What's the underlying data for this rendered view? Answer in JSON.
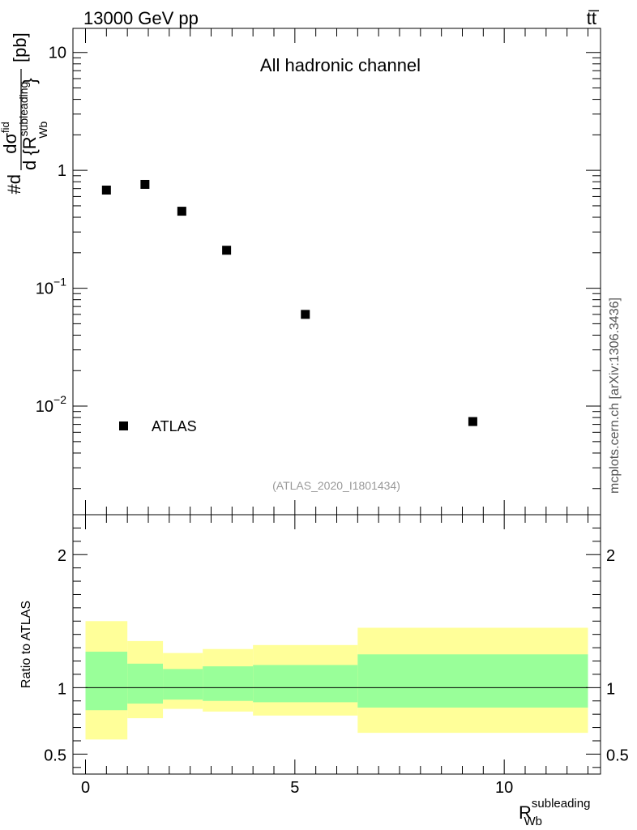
{
  "header": {
    "left": "13000 GeV pp",
    "right": "tt̅"
  },
  "side_label": "mcplots.cern.ch [arXiv:1306.3436]",
  "chart_data": [
    {
      "type": "scatter",
      "panel": "main",
      "title": "All hadronic channel",
      "ylabel": {
        "prefix": "#d",
        "frac_top": "dσ",
        "frac_top_sup": "fid",
        "frac_bottom_d": "d {R",
        "frac_bottom_sup": "subleading",
        "frac_bottom_sub": "Wb",
        "frac_bottom_close": "}",
        "unit": "[pb]"
      },
      "yscale": "log",
      "ylim": [
        0.0012,
        16
      ],
      "xlim": [
        -0.3,
        12.3
      ],
      "ytick_labels": [
        {
          "value": 10,
          "label": "10"
        },
        {
          "value": 1,
          "label": "1"
        },
        {
          "value": 0.1,
          "base": "10",
          "exp": "−1"
        },
        {
          "value": 0.01,
          "base": "10",
          "exp": "−2"
        }
      ],
      "series": [
        {
          "name": "ATLAS",
          "marker": "square",
          "color": "#000000",
          "x": [
            0.5,
            1.42,
            2.3,
            3.37,
            5.25,
            9.25
          ],
          "y": [
            0.68,
            0.76,
            0.45,
            0.21,
            0.06,
            0.0074
          ]
        }
      ],
      "legend": {
        "position": "bottom-left",
        "label": "ATLAS"
      },
      "watermark": "(ATLAS_2020_I1801434)"
    },
    {
      "type": "area",
      "panel": "ratio",
      "ylabel": "Ratio to ATLAS",
      "xlabel": {
        "base": "R",
        "sup": "subleading",
        "sub": "Wb"
      },
      "xlim": [
        -0.3,
        12.3
      ],
      "ylim": [
        0.35,
        2.3
      ],
      "xtick_labels": [
        {
          "value": 0,
          "label": "0"
        },
        {
          "value": 5,
          "label": "5"
        },
        {
          "value": 10,
          "label": "10"
        }
      ],
      "ytick_labels": [
        {
          "value": 2,
          "label": "2"
        },
        {
          "value": 1,
          "label": "1"
        },
        {
          "value": 0.5,
          "label": "0.5"
        }
      ],
      "reference_line": 1,
      "bins": [
        {
          "x0": 0.0,
          "x1": 1.0,
          "inner": [
            0.83,
            1.27
          ],
          "outer": [
            0.61,
            1.5
          ]
        },
        {
          "x0": 1.0,
          "x1": 1.85,
          "inner": [
            0.88,
            1.18
          ],
          "outer": [
            0.77,
            1.35
          ]
        },
        {
          "x0": 1.85,
          "x1": 2.8,
          "inner": [
            0.91,
            1.14
          ],
          "outer": [
            0.84,
            1.26
          ]
        },
        {
          "x0": 2.8,
          "x1": 4.0,
          "inner": [
            0.9,
            1.16
          ],
          "outer": [
            0.82,
            1.29
          ]
        },
        {
          "x0": 4.0,
          "x1": 6.5,
          "inner": [
            0.89,
            1.17
          ],
          "outer": [
            0.79,
            1.32
          ]
        },
        {
          "x0": 6.5,
          "x1": 12.0,
          "inner": [
            0.85,
            1.25
          ],
          "outer": [
            0.66,
            1.45
          ]
        }
      ],
      "band_colors": {
        "inner": "#99ff99",
        "outer": "#ffff99"
      }
    }
  ]
}
